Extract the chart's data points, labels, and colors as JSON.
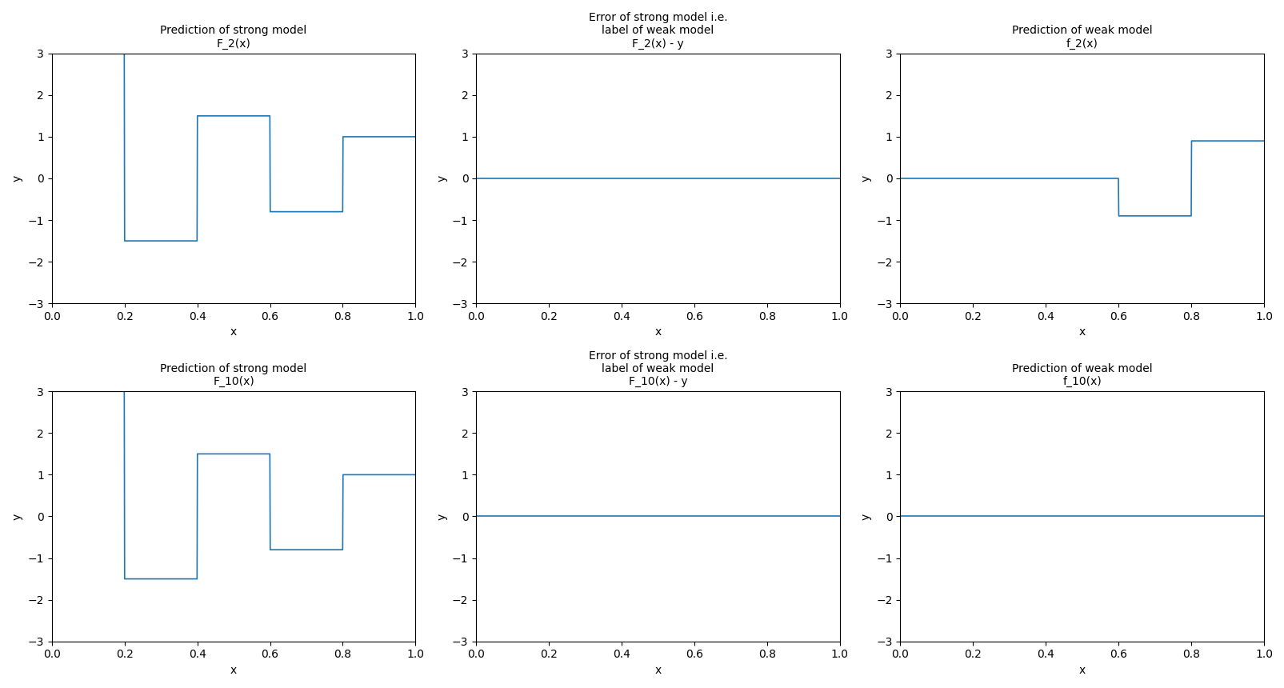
{
  "line_color": "#1f77b4",
  "ylim": [
    -3,
    3
  ],
  "xlim": [
    0.0,
    1.0
  ],
  "xlabel": "x",
  "ylabel": "y",
  "figsize": [
    16.06,
    8.6
  ],
  "dpi": 100,
  "titles": [
    [
      "Prediction of strong model\nF_2(x)",
      "Error of strong model i.e.\nlabel of weak model\nF_2(x) - y",
      "Prediction of weak model\nf_2(x)"
    ],
    [
      "Prediction of strong model\nF_10(x)",
      "Error of strong model i.e.\nlabel of weak model\nF_10(x) - y",
      "Prediction of weak model\nf_10(x)"
    ]
  ],
  "title_fontsize": 10,
  "linewidth": 1.2,
  "N": 1000,
  "learning_rate": 1.0,
  "n_iter": 10,
  "random_seed": 42
}
